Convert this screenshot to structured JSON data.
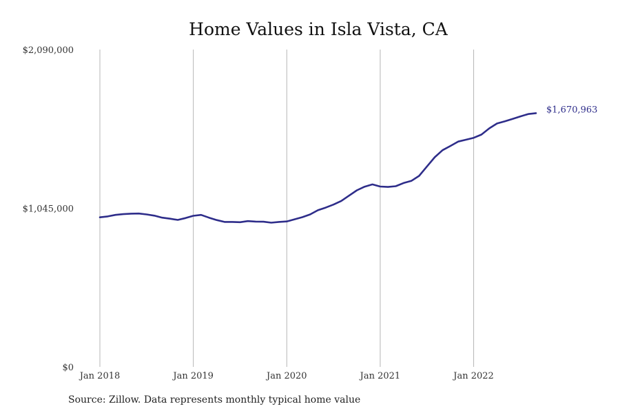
{
  "chart_data": {
    "type": "line",
    "title": "Home Values in Isla Vista, CA",
    "source": "Source: Zillow. Data represents monthly typical home value",
    "x_ticks": [
      "Jan 2018",
      "Jan 2019",
      "Jan 2020",
      "Jan 2021",
      "Jan 2022"
    ],
    "y_ticks": [
      "$0",
      "$1,045,000",
      "$2,090,000"
    ],
    "ylim": [
      0,
      2090000
    ],
    "xlim": [
      "2018-01",
      "2022-09"
    ],
    "grid": "vertical lines at January",
    "line_color": "#2e2d8a",
    "end_label": "$1,670,963",
    "series": [
      {
        "dates": [
          "2018-01",
          "2018-02",
          "2018-03",
          "2018-04",
          "2018-05",
          "2018-06",
          "2018-07",
          "2018-08",
          "2018-09",
          "2018-10",
          "2018-11",
          "2018-12",
          "2019-01",
          "2019-02",
          "2019-03",
          "2019-04",
          "2019-05",
          "2019-06",
          "2019-07",
          "2019-08",
          "2019-09",
          "2019-10",
          "2019-11",
          "2019-12",
          "2020-01",
          "2020-02",
          "2020-03",
          "2020-04",
          "2020-05",
          "2020-06",
          "2020-07",
          "2020-08",
          "2020-09",
          "2020-10",
          "2020-11",
          "2020-12",
          "2021-01",
          "2021-02",
          "2021-03",
          "2021-04",
          "2021-05",
          "2021-06",
          "2021-07",
          "2021-08",
          "2021-09",
          "2021-10",
          "2021-11",
          "2021-12",
          "2022-01",
          "2022-02",
          "2022-03",
          "2022-04",
          "2022-05",
          "2022-06",
          "2022-07",
          "2022-08",
          "2022-09"
        ],
        "values": [
          985000,
          991000,
          1001000,
          1006000,
          1009000,
          1010000,
          1004000,
          996000,
          983000,
          976000,
          968000,
          980000,
          995000,
          1001000,
          983000,
          967000,
          955000,
          955000,
          953000,
          960000,
          957000,
          956000,
          950000,
          955000,
          958000,
          972000,
          986000,
          1004000,
          1032000,
          1049000,
          1069000,
          1093000,
          1128000,
          1163000,
          1187000,
          1202000,
          1188000,
          1185000,
          1190000,
          1211000,
          1225000,
          1258000,
          1320000,
          1381000,
          1427000,
          1455000,
          1484000,
          1496000,
          1509000,
          1530000,
          1571000,
          1603000,
          1617000,
          1633000,
          1650000,
          1665000,
          1670963
        ]
      }
    ]
  }
}
